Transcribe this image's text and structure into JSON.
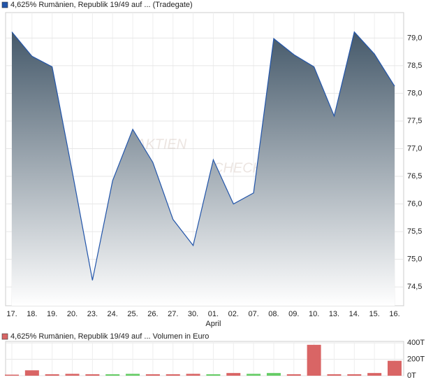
{
  "chart_data": [
    {
      "type": "area",
      "categories": [
        "17.",
        "18.",
        "19.",
        "20.",
        "23.",
        "24.",
        "25.",
        "26.",
        "27.",
        "30.",
        "01.",
        "02.",
        "07.",
        "08.",
        "09.",
        "10.",
        "13.",
        "14.",
        "15.",
        "16."
      ],
      "categories_secondary": [
        null,
        null,
        null,
        null,
        null,
        null,
        null,
        null,
        null,
        null,
        "April",
        null,
        null,
        null,
        null,
        null,
        null,
        null,
        null,
        null
      ],
      "series": [
        {
          "name": "4,625% Rumänien, Republik 19/49 auf ... (Tradegate)",
          "color": "#2255aa",
          "values": [
            79.11,
            78.67,
            78.48,
            76.58,
            74.62,
            76.42,
            77.35,
            76.75,
            75.72,
            75.25,
            76.8,
            76.0,
            76.2,
            78.99,
            78.7,
            78.48,
            77.59,
            79.11,
            78.71,
            78.13
          ]
        }
      ],
      "ylim": [
        74.16,
        79.46
      ],
      "yticks": [
        {
          "value": 74.5,
          "label": "74,5"
        },
        {
          "value": 75,
          "label": "75,0"
        },
        {
          "value": 75.5,
          "label": "75,5"
        },
        {
          "value": 76,
          "label": "76,0"
        },
        {
          "value": 76.5,
          "label": "76,5"
        },
        {
          "value": 77,
          "label": "77,0"
        },
        {
          "value": 77.5,
          "label": "77,5"
        },
        {
          "value": 78,
          "label": "78,0"
        },
        {
          "value": 78.5,
          "label": "78,5"
        },
        {
          "value": 79,
          "label": "79,0"
        }
      ],
      "grid": true,
      "watermark": [
        "AKTIEN",
        "CHECK"
      ]
    },
    {
      "type": "bar",
      "series": [
        {
          "name": "4,625% Rumänien, Republik 19/49 auf ... Volumen in Euro",
          "color": "#d96565",
          "colors": [
            "#d96565",
            "#d96565",
            "#d96565",
            "#d96565",
            "#d96565",
            "#66cc66",
            "#66cc66",
            "#d96565",
            "#d96565",
            "#d96565",
            "#66cc66",
            "#d96565",
            "#66cc66",
            "#66cc66",
            "#d96565",
            "#d96565",
            "#d96565",
            "#d96565",
            "#d96565",
            "#d96565"
          ],
          "values": [
            0,
            53,
            5,
            10,
            5,
            5,
            10,
            5,
            5,
            10,
            5,
            20,
            10,
            20,
            5,
            364,
            5,
            5,
            20,
            169
          ]
        }
      ],
      "ylim": [
        0,
        418
      ],
      "yticks": [
        {
          "value": 0,
          "label": "0T"
        },
        {
          "value": 200,
          "label": "200T"
        },
        {
          "value": 400,
          "label": "400T"
        }
      ]
    }
  ]
}
